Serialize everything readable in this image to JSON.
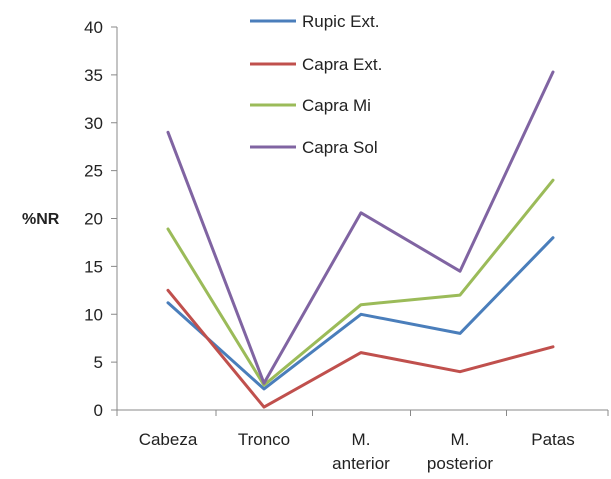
{
  "chart_data": {
    "type": "line",
    "categories": [
      [
        "Cabeza"
      ],
      [
        "Tronco"
      ],
      [
        "M.",
        "anterior"
      ],
      [
        "M.",
        "posterior"
      ],
      [
        "Patas"
      ]
    ],
    "ylabel": "%NR",
    "xlabel": "",
    "title": "",
    "ylim": [
      0,
      40
    ],
    "yticks": [
      0,
      5,
      10,
      15,
      20,
      25,
      30,
      35,
      40
    ],
    "grid": false,
    "legend_position": "top-center",
    "series": [
      {
        "name": "Rupic Ext.",
        "color": "#4a7ebb",
        "values": [
          11.2,
          2.2,
          10.0,
          8.0,
          18.0
        ]
      },
      {
        "name": "Capra Ext.",
        "color": "#c0504d",
        "values": [
          12.5,
          0.3,
          6.0,
          4.0,
          6.6
        ]
      },
      {
        "name": "Capra Mi",
        "color": "#9bbb59",
        "values": [
          18.9,
          2.6,
          11.0,
          12.0,
          24.0
        ]
      },
      {
        "name": "Capra Sol",
        "color": "#8064a2",
        "values": [
          29.0,
          2.8,
          20.6,
          14.5,
          35.3
        ]
      }
    ]
  }
}
